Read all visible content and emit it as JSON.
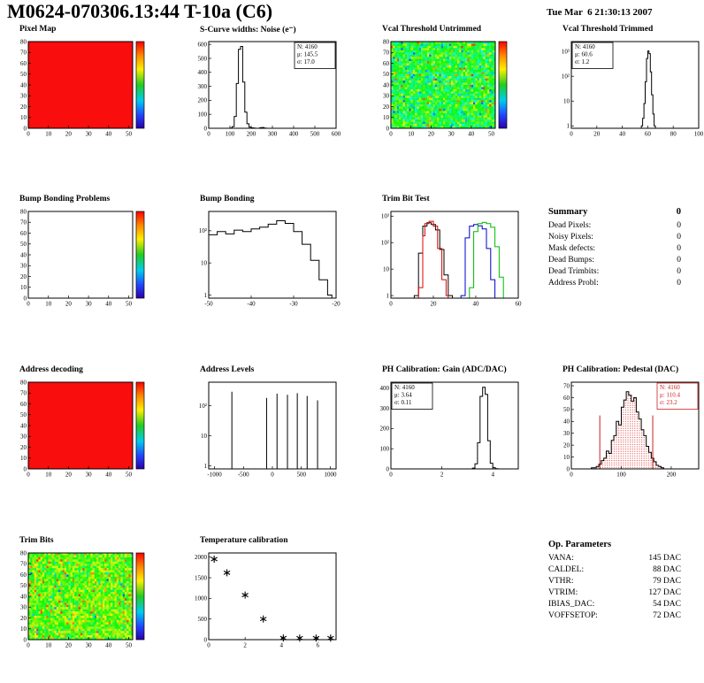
{
  "header": {
    "title": "M0624-070306.13:44 T-10a (C6)",
    "datetime": "Tue Mar  6 21:30:13 2007"
  },
  "summary": {
    "title": "Summary",
    "total": "0",
    "rows": [
      {
        "label": "Dead Pixels:",
        "value": "0"
      },
      {
        "label": "Noisy Pixels:",
        "value": "0"
      },
      {
        "label": "Mask defects:",
        "value": "0"
      },
      {
        "label": "Dead Bumps:",
        "value": "0"
      },
      {
        "label": "Dead Trimbits:",
        "value": "0"
      },
      {
        "label": "Address Probl:",
        "value": "0"
      }
    ]
  },
  "op_parameters": {
    "title": "Op. Parameters",
    "rows": [
      {
        "label": "VANA:",
        "value": "145 DAC"
      },
      {
        "label": "CALDEL:",
        "value": "88 DAC"
      },
      {
        "label": "VTHR:",
        "value": "79 DAC"
      },
      {
        "label": "VTRIM:",
        "value": "127 DAC"
      },
      {
        "label": "IBIAS_DAC:",
        "value": "54 DAC"
      },
      {
        "label": "VOFFSETOP:",
        "value": "72 DAC"
      }
    ]
  },
  "chart_data": [
    {
      "id": "pixel-map",
      "title": "Pixel Map",
      "type": "map2d",
      "x": {
        "min": 0,
        "max": 52,
        "ticks": [
          0,
          10,
          20,
          30,
          40,
          50
        ]
      },
      "y": {
        "min": 0,
        "max": 80,
        "ticks": [
          0,
          10,
          20,
          30,
          40,
          50,
          60,
          70,
          80
        ]
      },
      "map": {
        "mode": "uniform",
        "color": "#f90d0d"
      },
      "colorbar": true
    },
    {
      "id": "scurve-noise",
      "title": "S-Curve widths: Noise (e⁻)",
      "type": "hist",
      "x": {
        "min": 0,
        "max": 600,
        "ticks": [
          0,
          100,
          200,
          300,
          400,
          500,
          600
        ]
      },
      "y": {
        "min": 0,
        "max": 620,
        "ticks": [
          0,
          100,
          200,
          300,
          400,
          500,
          600
        ]
      },
      "series": [
        {
          "color": "#000000",
          "points": [
            [
              90,
              0
            ],
            [
              100,
              2
            ],
            [
              110,
              12
            ],
            [
              120,
              85
            ],
            [
              130,
              320
            ],
            [
              140,
              565
            ],
            [
              150,
              585
            ],
            [
              160,
              330
            ],
            [
              170,
              115
            ],
            [
              180,
              32
            ],
            [
              190,
              8
            ],
            [
              200,
              3
            ],
            [
              210,
              1
            ],
            [
              220,
              0
            ],
            [
              240,
              4
            ],
            [
              250,
              6
            ],
            [
              260,
              1
            ],
            [
              270,
              0
            ]
          ]
        }
      ],
      "stats": {
        "pos": "tr",
        "color": "#000000",
        "lines": [
          "N: 4160",
          "μ: 145.5",
          "σ: 17.0"
        ]
      }
    },
    {
      "id": "vcal-untrimmed",
      "title": "Vcal Threshold Untrimmed",
      "type": "map2d",
      "x": {
        "min": 0,
        "max": 52,
        "ticks": [
          0,
          10,
          20,
          30,
          40,
          50
        ]
      },
      "y": {
        "min": 0,
        "max": 80,
        "ticks": [
          0,
          10,
          20,
          30,
          40,
          50,
          60,
          70,
          80
        ]
      },
      "map": {
        "mode": "noise",
        "seed": 12345,
        "center": 0.47,
        "spread": 0.3,
        "cold_frac": 0.05,
        "hot_frac": 0.02
      },
      "colorbar": true
    },
    {
      "id": "vcal-trimmed",
      "title": "Vcal Threshold Trimmed",
      "type": "hist",
      "x": {
        "min": 0,
        "max": 100,
        "ticks": [
          0,
          20,
          40,
          60,
          80,
          100
        ]
      },
      "y": {
        "log": true,
        "min": 0.8,
        "max": 2500,
        "ticks": [
          1,
          10,
          100,
          1000
        ],
        "tick_labels": [
          "1",
          "10",
          "10²",
          "10³"
        ]
      },
      "series": [
        {
          "color": "#000000",
          "points": [
            [
              54,
              0
            ],
            [
              55,
              1
            ],
            [
              56,
              2
            ],
            [
              57,
              8
            ],
            [
              58,
              60
            ],
            [
              59,
              520
            ],
            [
              60,
              1050
            ],
            [
              61,
              820
            ],
            [
              62,
              150
            ],
            [
              63,
              18
            ],
            [
              64,
              3
            ],
            [
              65,
              1
            ],
            [
              66,
              0
            ]
          ]
        }
      ],
      "stats": {
        "pos": "tl",
        "color": "#000000",
        "lines": [
          "N: 4160",
          "μ: 60.6",
          "σ:  1.2"
        ]
      }
    },
    {
      "id": "bump-problems",
      "title": "Bump Bonding Problems",
      "type": "map2d",
      "x": {
        "min": 0,
        "max": 52,
        "ticks": [
          0,
          10,
          20,
          30,
          40,
          50
        ]
      },
      "y": {
        "min": 0,
        "max": 80,
        "ticks": [
          0,
          10,
          20,
          30,
          40,
          50,
          60,
          70,
          80
        ]
      },
      "map": {
        "mode": "empty"
      },
      "colorbar": true
    },
    {
      "id": "bump-bonding",
      "title": "Bump Bonding",
      "type": "hist",
      "x": {
        "min": -50,
        "max": -20,
        "ticks": [
          -50,
          -40,
          -30,
          -20
        ]
      },
      "y": {
        "log": true,
        "min": 0.8,
        "max": 400,
        "ticks": [
          1,
          10,
          100
        ],
        "tick_labels": [
          "1",
          "10",
          "10²"
        ]
      },
      "series": [
        {
          "color": "#000000",
          "points": [
            [
              -50,
              75
            ],
            [
              -48,
              95
            ],
            [
              -46,
              80
            ],
            [
              -44,
              105
            ],
            [
              -42,
              95
            ],
            [
              -40,
              115
            ],
            [
              -38,
              130
            ],
            [
              -36,
              160
            ],
            [
              -34,
              205
            ],
            [
              -32,
              170
            ],
            [
              -30,
              95
            ],
            [
              -28,
              38
            ],
            [
              -26,
              12
            ],
            [
              -24,
              3
            ],
            [
              -22,
              1
            ],
            [
              -21,
              0
            ]
          ]
        }
      ]
    },
    {
      "id": "trimbit-test",
      "title": "Trim Bit Test",
      "type": "hist",
      "x": {
        "min": 0,
        "max": 60,
        "ticks": [
          0,
          20,
          40,
          60
        ]
      },
      "y": {
        "log": true,
        "min": 0.8,
        "max": 1500,
        "ticks": [
          1,
          10,
          100,
          1000
        ],
        "tick_labels": [
          "1",
          "10",
          "10²",
          "10³"
        ]
      },
      "series": [
        {
          "color": "#000000",
          "points": [
            [
              11,
              1
            ],
            [
              13,
              40
            ],
            [
              15,
              420
            ],
            [
              17,
              560
            ],
            [
              19,
              480
            ],
            [
              21,
              300
            ],
            [
              23,
              55
            ],
            [
              25,
              6
            ],
            [
              27,
              1
            ],
            [
              29,
              0
            ]
          ]
        },
        {
          "color": "#dd0000",
          "points": [
            [
              13,
              2
            ],
            [
              15,
              180
            ],
            [
              16,
              520
            ],
            [
              18,
              640
            ],
            [
              20,
              420
            ],
            [
              22,
              60
            ],
            [
              24,
              4
            ],
            [
              26,
              1
            ],
            [
              27,
              0
            ]
          ]
        },
        {
          "color": "#0000cc",
          "points": [
            [
              33,
              1
            ],
            [
              35,
              150
            ],
            [
              37,
              420
            ],
            [
              39,
              480
            ],
            [
              41,
              430
            ],
            [
              43,
              330
            ],
            [
              45,
              60
            ],
            [
              47,
              4
            ],
            [
              49,
              0
            ]
          ]
        },
        {
          "color": "#00bb00",
          "points": [
            [
              37,
              2
            ],
            [
              39,
              260
            ],
            [
              41,
              520
            ],
            [
              43,
              580
            ],
            [
              45,
              520
            ],
            [
              47,
              380
            ],
            [
              49,
              70
            ],
            [
              51,
              5
            ],
            [
              53,
              0
            ]
          ]
        }
      ]
    },
    {
      "id": "address-decoding",
      "title": "Address decoding",
      "type": "map2d",
      "x": {
        "min": 0,
        "max": 52,
        "ticks": [
          0,
          10,
          20,
          30,
          40,
          50
        ]
      },
      "y": {
        "min": 0,
        "max": 80,
        "ticks": [
          0,
          10,
          20,
          30,
          40,
          50,
          60,
          70,
          80
        ]
      },
      "map": {
        "mode": "uniform",
        "color": "#f90d0d"
      },
      "colorbar": true
    },
    {
      "id": "address-levels",
      "title": "Address Levels",
      "type": "spikes",
      "x": {
        "min": -1100,
        "max": 1100,
        "ticks": [
          -1000,
          -500,
          0,
          500,
          1000
        ]
      },
      "y": {
        "log": true,
        "min": 0.8,
        "max": 600,
        "ticks": [
          1,
          10,
          100
        ],
        "tick_labels": [
          "1",
          "10",
          "10²"
        ]
      },
      "spikes": [
        [
          -700,
          290
        ],
        [
          -100,
          180
        ],
        [
          80,
          250
        ],
        [
          260,
          230
        ],
        [
          430,
          260
        ],
        [
          600,
          210
        ],
        [
          780,
          150
        ]
      ]
    },
    {
      "id": "ph-gain",
      "title": "PH Calibration: Gain (ADC/DAC)",
      "type": "hist",
      "x": {
        "min": 0,
        "max": 5,
        "ticks": [
          0,
          2,
          4
        ]
      },
      "y": {
        "min": 0,
        "max": 430,
        "ticks": [
          0,
          100,
          200,
          300,
          400
        ]
      },
      "series": [
        {
          "color": "#000000",
          "points": [
            [
              3.1,
              0
            ],
            [
              3.2,
              4
            ],
            [
              3.3,
              25
            ],
            [
              3.4,
              130
            ],
            [
              3.5,
              360
            ],
            [
              3.6,
              405
            ],
            [
              3.7,
              370
            ],
            [
              3.8,
              140
            ],
            [
              3.9,
              28
            ],
            [
              4.0,
              6
            ],
            [
              4.1,
              1
            ],
            [
              4.2,
              0
            ]
          ]
        }
      ],
      "stats": {
        "pos": "tl",
        "color": "#000000",
        "lines": [
          "N: 4160",
          "μ: 3.64",
          "σ: 0.11"
        ]
      }
    },
    {
      "id": "ph-pedestal",
      "title": "PH Calibration: Pedestal (DAC)",
      "type": "hist",
      "x": {
        "min": 0,
        "max": 255,
        "ticks": [
          0,
          100,
          200
        ]
      },
      "y": {
        "min": 0,
        "max": 73,
        "ticks": [
          0,
          10,
          20,
          30,
          40,
          50,
          60,
          70
        ]
      },
      "series": [
        {
          "color": "#000000",
          "fill": "stipple",
          "points": [
            [
              40,
              1
            ],
            [
              45,
              1
            ],
            [
              50,
              2
            ],
            [
              55,
              4
            ],
            [
              60,
              7
            ],
            [
              65,
              9
            ],
            [
              70,
              15
            ],
            [
              75,
              13
            ],
            [
              80,
              24
            ],
            [
              85,
              28
            ],
            [
              90,
              40
            ],
            [
              95,
              37
            ],
            [
              100,
              52
            ],
            [
              105,
              58
            ],
            [
              110,
              65
            ],
            [
              115,
              62
            ],
            [
              120,
              57
            ],
            [
              125,
              60
            ],
            [
              130,
              48
            ],
            [
              135,
              42
            ],
            [
              140,
              33
            ],
            [
              145,
              28
            ],
            [
              150,
              19
            ],
            [
              155,
              14
            ],
            [
              160,
              9
            ],
            [
              165,
              6
            ],
            [
              170,
              3
            ],
            [
              175,
              2
            ],
            [
              180,
              1
            ],
            [
              185,
              0
            ]
          ]
        }
      ],
      "vlines": [
        {
          "x": 57,
          "h": 45,
          "color": "#cc2222"
        },
        {
          "x": 163,
          "h": 45,
          "color": "#cc2222"
        }
      ],
      "stats": {
        "pos": "tr",
        "color": "#cc2222",
        "lines": [
          "N: 4160",
          "μ: 110.4",
          "σ: 23.2"
        ]
      }
    },
    {
      "id": "trim-bits",
      "title": "Trim Bits",
      "type": "map2d",
      "x": {
        "min": 0,
        "max": 52,
        "ticks": [
          0,
          10,
          20,
          30,
          40,
          50
        ]
      },
      "y": {
        "min": 0,
        "max": 80,
        "ticks": [
          0,
          10,
          20,
          30,
          40,
          50,
          60,
          70,
          80
        ]
      },
      "map": {
        "mode": "noise",
        "seed": 777,
        "center": 0.58,
        "spread": 0.26,
        "cold_frac": 0.01,
        "hot_frac": 0.05
      },
      "colorbar": true
    },
    {
      "id": "temp-calibration",
      "title": "Temperature calibration",
      "type": "scatter",
      "x": {
        "min": 0,
        "max": 7,
        "ticks": [
          0,
          2,
          4,
          6
        ]
      },
      "y": {
        "min": 0,
        "max": 2100,
        "ticks": [
          0,
          500,
          1000,
          1500,
          2000
        ]
      },
      "marker": "star",
      "points": [
        [
          0.3,
          1950
        ],
        [
          1.0,
          1620
        ],
        [
          2.0,
          1080
        ],
        [
          3.0,
          500
        ],
        [
          4.1,
          40
        ],
        [
          5.0,
          38
        ],
        [
          5.9,
          38
        ],
        [
          6.7,
          38
        ]
      ]
    }
  ]
}
